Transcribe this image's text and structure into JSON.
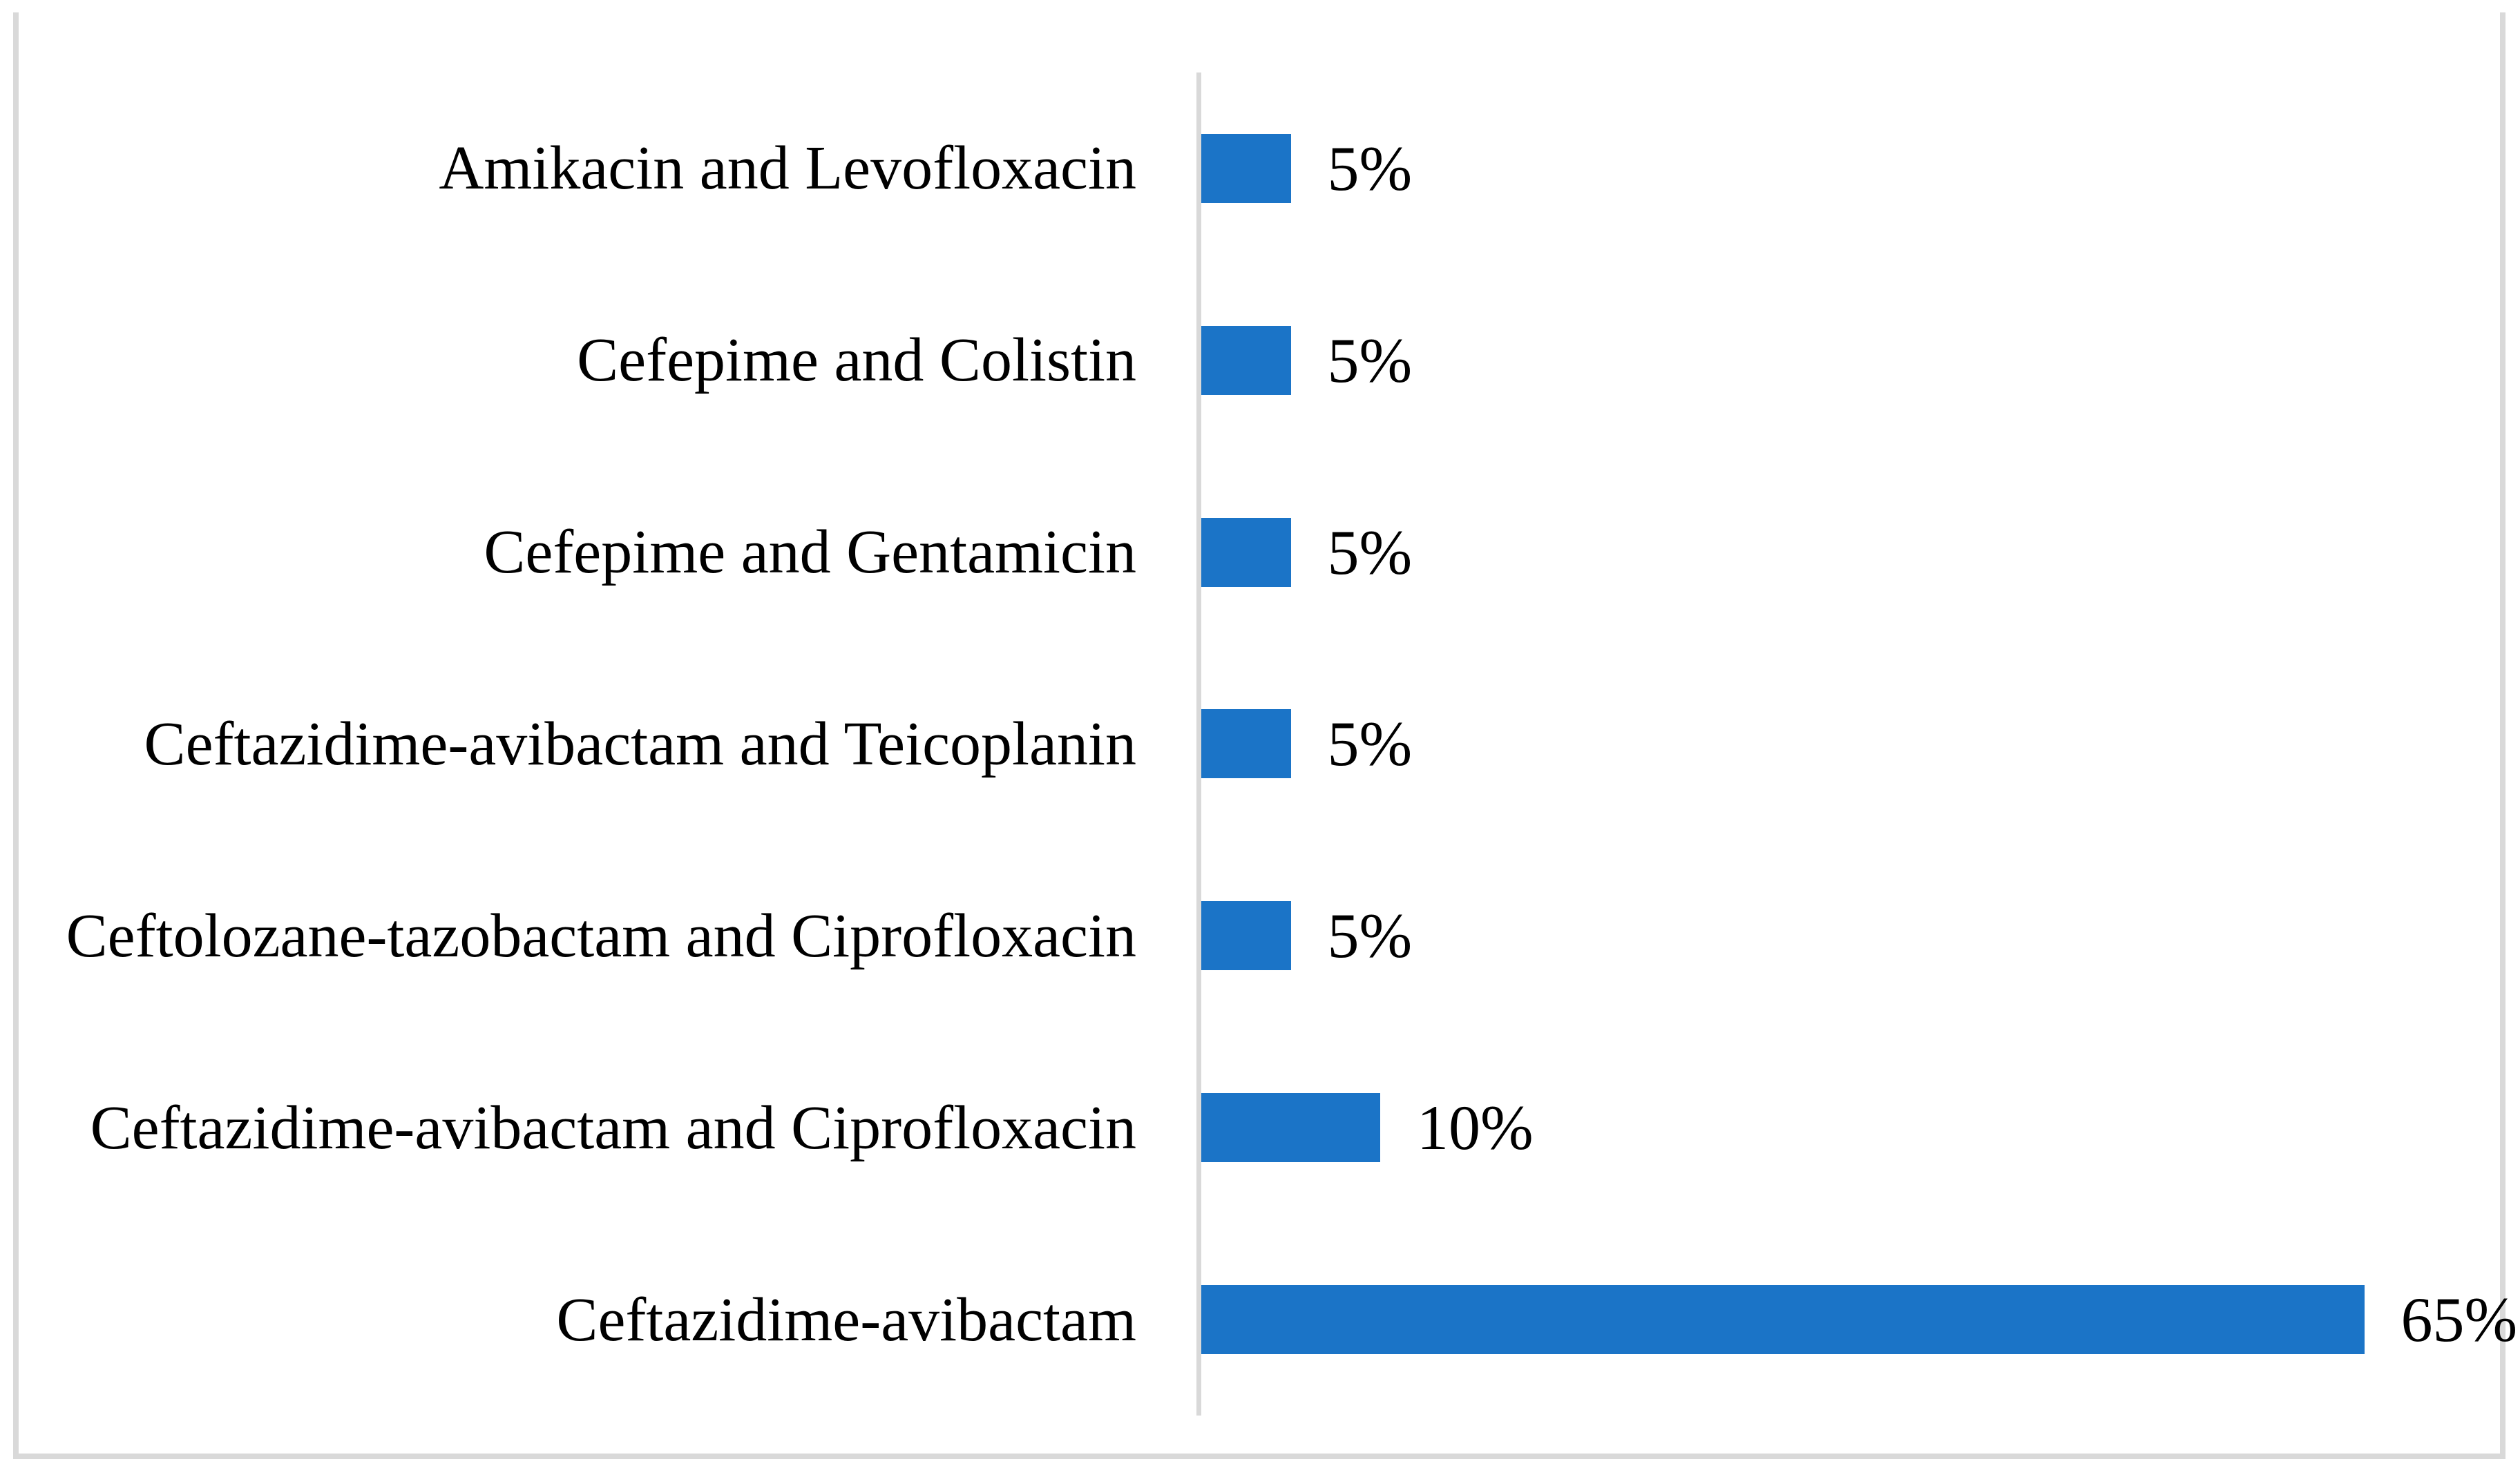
{
  "figure": {
    "background": "#FFFFFF",
    "frame_color": "#D9D9D9"
  },
  "chart_data": {
    "type": "bar",
    "orientation": "horizontal",
    "title": "",
    "subtitle": "",
    "xlabel": "",
    "ylabel": "",
    "categories": [
      "Amikacin and Levofloxacin",
      "Cefepime and Colistin",
      "Cefepime and Gentamicin",
      "Ceftazidime-avibactam and Teicoplanin",
      "Ceftolozane-tazobactam and Ciprofloxacin",
      "Ceftazidime-avibactam and Ciprofloxacin",
      "Ceftazidime-avibactam"
    ],
    "values": [
      5,
      5,
      5,
      5,
      5,
      10,
      65
    ],
    "value_labels": [
      "5%",
      "5%",
      "5%",
      "5%",
      "5%",
      "10%",
      "65%"
    ],
    "unit": "%",
    "xlim": [
      0,
      72
    ],
    "grid": false,
    "legend": false,
    "data_labels_position": "outside-end",
    "bar_color": "#1B74C7",
    "axis_line_color": "#D9D9D9",
    "text_color": "#000000"
  }
}
